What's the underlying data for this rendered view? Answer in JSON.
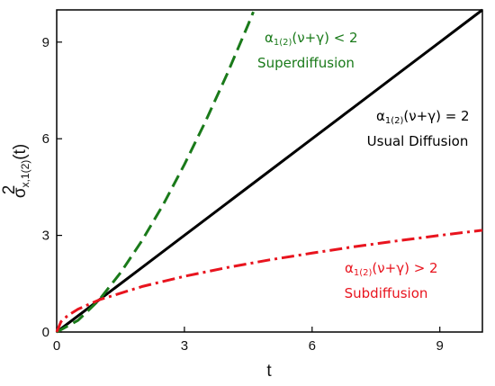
{
  "chart_data": {
    "type": "line",
    "xlabel": "t",
    "ylabel_main": "σ",
    "ylabel_sup": "2",
    "ylabel_sub": "x,1(2)",
    "ylabel_tail": "(t)",
    "xlim": [
      0,
      10
    ],
    "ylim": [
      0,
      10
    ],
    "xticks": [
      0,
      3,
      6,
      9
    ],
    "yticks": [
      0,
      3,
      6,
      9
    ],
    "grid": false,
    "legend": "none",
    "series": [
      {
        "color": "#000000",
        "style": "solid",
        "x": [
          0,
          1,
          2,
          3,
          4,
          5,
          6,
          7,
          8,
          9,
          10
        ],
        "y": [
          0,
          1,
          2,
          3,
          4,
          5,
          6,
          7,
          8,
          9,
          10
        ]
      },
      {
        "color": "#1a7a1a",
        "style": "dashed",
        "x": [
          0,
          0.5,
          1,
          1.5,
          2,
          2.5,
          3,
          3.5,
          4,
          4.5,
          4.62
        ],
        "y": [
          0,
          0.36,
          1.0,
          1.84,
          2.83,
          3.95,
          5.2,
          6.55,
          8.0,
          9.55,
          9.94
        ]
      },
      {
        "color": "#e8141e",
        "style": "dashdot",
        "x": [
          0,
          0.1,
          0.25,
          0.5,
          1,
          2,
          3,
          4,
          5,
          6,
          7,
          8,
          9,
          10
        ],
        "y": [
          0,
          0.32,
          0.5,
          0.71,
          1.0,
          1.41,
          1.73,
          2.0,
          2.24,
          2.45,
          2.65,
          2.83,
          3.0,
          3.16
        ]
      }
    ],
    "annotations": [
      {
        "color": "#1a7a1a",
        "pre": "α",
        "sub": "1(2)",
        "post": "(ν+γ) < 2",
        "label": "Superdiffusion"
      },
      {
        "color": "#000000",
        "pre": "α",
        "sub": "1(2)",
        "post": "(ν+γ) = 2",
        "label": "Usual Diffusion"
      },
      {
        "color": "#e8141e",
        "pre": "α",
        "sub": "1(2)",
        "post": "(ν+γ) > 2",
        "label": "Subdiffusion"
      }
    ]
  }
}
